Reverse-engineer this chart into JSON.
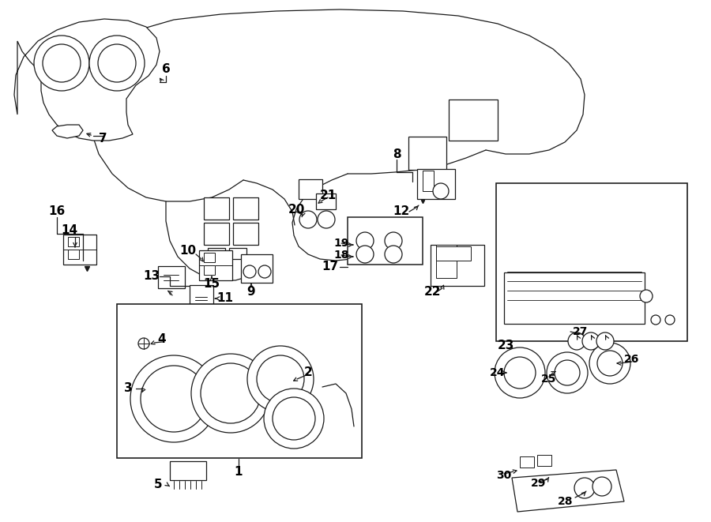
{
  "bg_color": "#ffffff",
  "line_color": "#1a1a1a",
  "lw": 0.9,
  "fig_width": 9.0,
  "fig_height": 6.61,
  "dpi": 100,
  "xlim": [
    0,
    900
  ],
  "ylim": [
    0,
    661
  ]
}
